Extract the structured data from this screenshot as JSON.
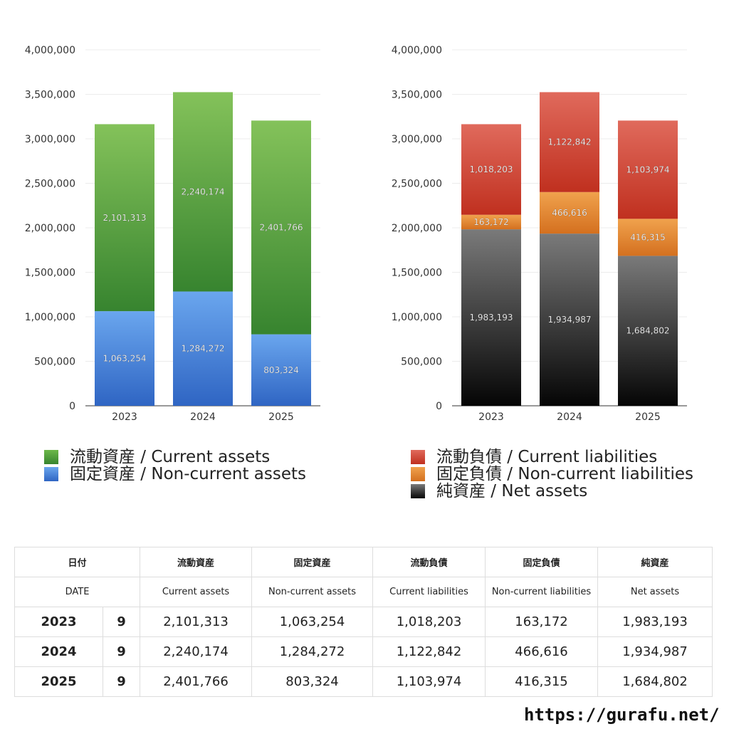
{
  "chart_data": [
    {
      "type": "bar",
      "stacked": true,
      "categories": [
        "2023",
        "2024",
        "2025"
      ],
      "series": [
        {
          "name": "固定資産 / Non-current assets",
          "values": [
            1063254,
            1284272,
            803324
          ],
          "labels": [
            "1,063,254",
            "1,284,272",
            "803,324"
          ],
          "color_top": "#6aa6ee",
          "color_bottom": "#2f65c3"
        },
        {
          "name": "流動資産 / Current assets",
          "values": [
            2101313,
            2240174,
            2401766
          ],
          "labels": [
            "2,101,313",
            "2,240,174",
            "2,401,766"
          ],
          "color_top": "#84c25a",
          "color_bottom": "#37842f"
        }
      ],
      "yticks": [
        "0",
        "500,000",
        "1,000,000",
        "1,500,000",
        "2,000,000",
        "2,500,000",
        "3,000,000",
        "3,500,000",
        "4,000,000"
      ],
      "ylim": [
        0,
        4000000
      ],
      "grid": true,
      "legend_position": "bottom"
    },
    {
      "type": "bar",
      "stacked": true,
      "categories": [
        "2023",
        "2024",
        "2025"
      ],
      "series": [
        {
          "name": "純資産 / Net assets",
          "values": [
            1983193,
            1934987,
            1684802
          ],
          "labels": [
            "1,983,193",
            "1,934,987",
            "1,684,802"
          ],
          "color_top": "#7a7a7a",
          "color_bottom": "#050505"
        },
        {
          "name": "固定負債 / Non-current liabilities",
          "values": [
            163172,
            466616,
            416315
          ],
          "labels": [
            "163,172",
            "466,616",
            "416,315"
          ],
          "color_top": "#f0a24d",
          "color_bottom": "#d4701f"
        },
        {
          "name": "流動負債 / Current liabilities",
          "values": [
            1018203,
            1122842,
            1103974
          ],
          "labels": [
            "1,018,203",
            "1,122,842",
            "1,103,974"
          ],
          "color_top": "#e06a5c",
          "color_bottom": "#c0301f"
        }
      ],
      "yticks": [
        "0",
        "500,000",
        "1,000,000",
        "1,500,000",
        "2,000,000",
        "2,500,000",
        "3,000,000",
        "3,500,000",
        "4,000,000"
      ],
      "ylim": [
        0,
        4000000
      ],
      "grid": true,
      "legend_position": "bottom"
    }
  ],
  "legends": {
    "left": [
      {
        "label": "流動資産 / Current assets",
        "color": "#4e9d3c"
      },
      {
        "label": "固定資産 / Non-current assets",
        "color": "#4a87da"
      }
    ],
    "right": [
      {
        "label": "流動負債 / Current liabilities",
        "color": "#d44a3a"
      },
      {
        "label": "固定負債 / Non-current liabilities",
        "color": "#e8893a"
      },
      {
        "label": "純資産 / Net assets",
        "color": "#1a1a1a"
      }
    ]
  },
  "table": {
    "header_ja": [
      "日付",
      "流動資産",
      "固定資産",
      "流動負債",
      "固定負債",
      "純資産"
    ],
    "header_en": [
      "DATE",
      "Current assets",
      "Non-current assets",
      "Current liabilities",
      "Non-current liabilities",
      "Net assets"
    ],
    "rows": [
      {
        "year": "2023",
        "month": "9",
        "cells": [
          "2,101,313",
          "1,063,254",
          "1,018,203",
          "163,172",
          "1,983,193"
        ]
      },
      {
        "year": "2024",
        "month": "9",
        "cells": [
          "2,240,174",
          "1,284,272",
          "1,122,842",
          "466,616",
          "1,934,987"
        ]
      },
      {
        "year": "2025",
        "month": "9",
        "cells": [
          "2,401,766",
          "803,324",
          "1,103,974",
          "416,315",
          "1,684,802"
        ]
      }
    ]
  },
  "watermark": "https://gurafu.net/"
}
